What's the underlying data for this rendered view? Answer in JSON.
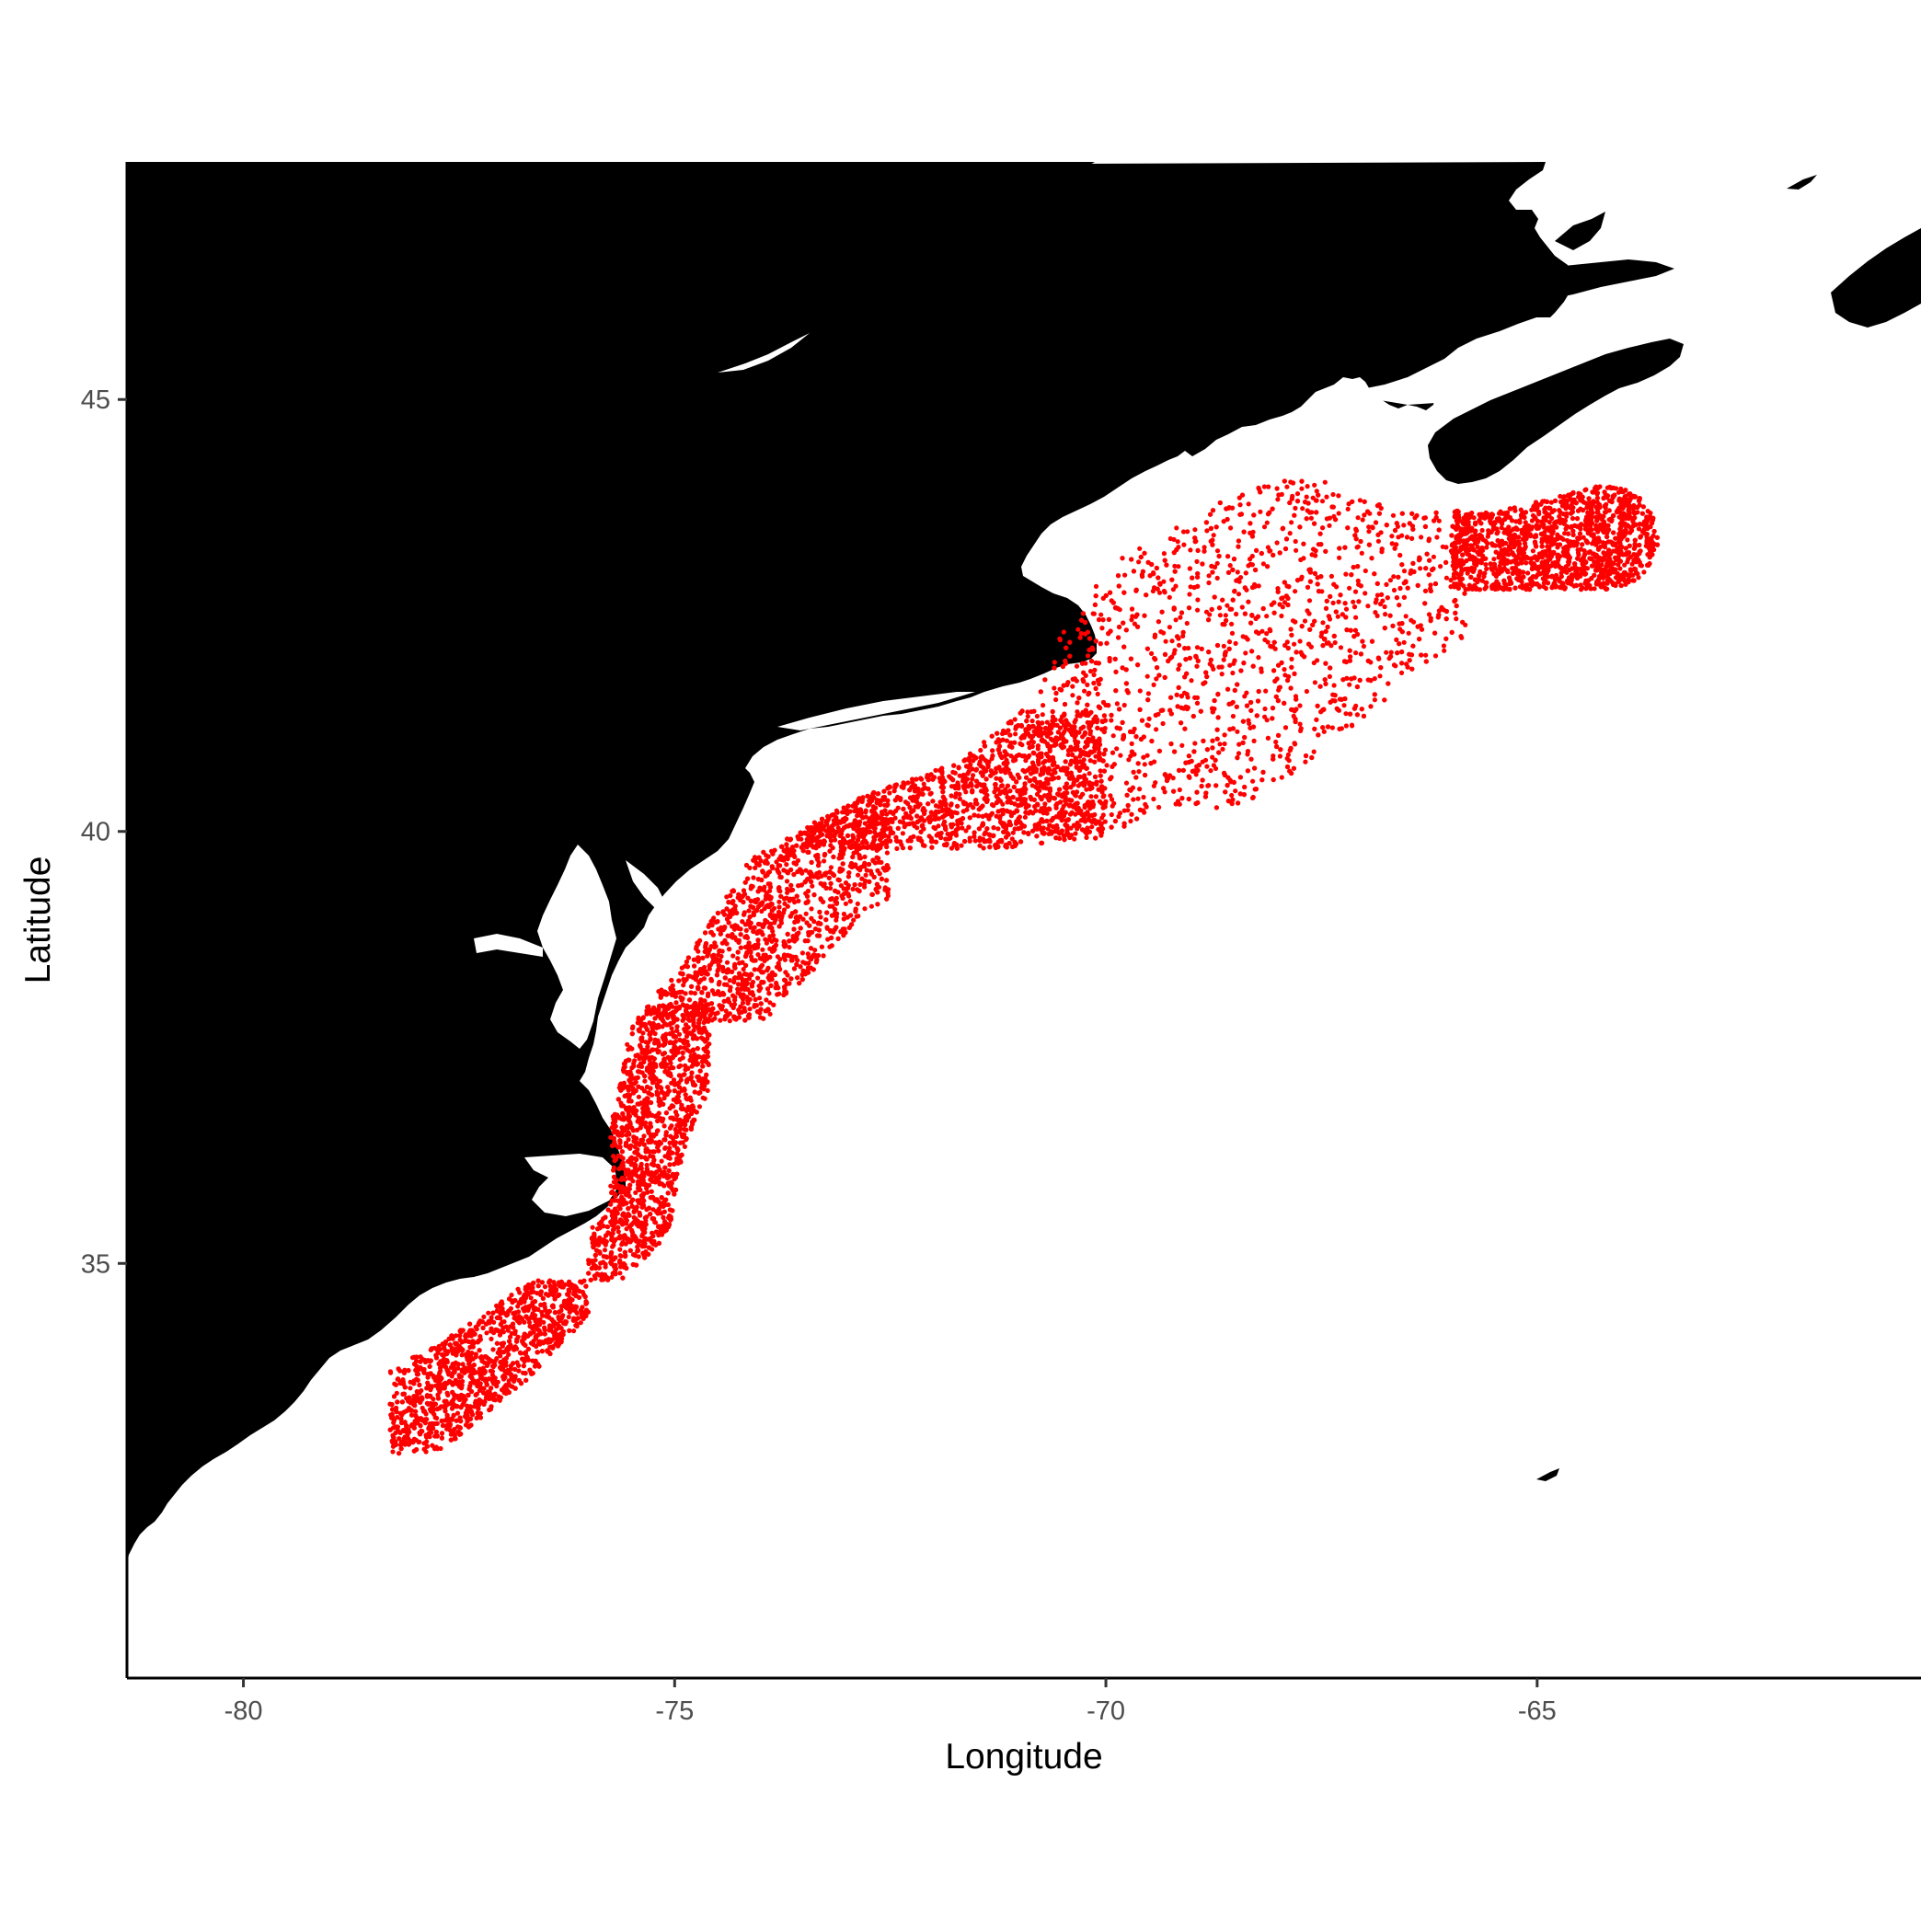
{
  "chart_data": {
    "type": "scatter",
    "title": "",
    "xlabel": "Longitude",
    "ylabel": "Latitude",
    "xlim": [
      -81.35,
      -60.55
    ],
    "ylim": [
      30.2,
      47.75
    ],
    "x_ticks": [
      -80,
      -75,
      -70,
      -65
    ],
    "y_ticks": [
      35,
      40,
      45
    ],
    "x_tick_labels": [
      "-80",
      "-75",
      "-70",
      "-65"
    ],
    "y_tick_labels": [
      "35",
      "40",
      "45"
    ],
    "grid": false,
    "legend": "none",
    "land_color": "#000000",
    "point_color": "#ff0000",
    "basemap": "land polygons (North America east coast)",
    "series": [
      {
        "points_description": "dense scatter of survey locations along the continental shelf from about 32.8N to 44.5N",
        "point_count_approx": 12000
      }
    ],
    "density_regions": [
      {
        "lon_range": [
          -78.3,
          -76.0
        ],
        "lat_range": [
          32.8,
          34.8
        ]
      },
      {
        "lon_range": [
          -76.0,
          -74.6
        ],
        "lat_range": [
          34.8,
          38.0
        ]
      },
      {
        "lon_range": [
          -75.2,
          -72.5
        ],
        "lat_range": [
          37.8,
          40.4
        ]
      },
      {
        "lon_range": [
          -73.5,
          -70.0
        ],
        "lat_range": [
          39.8,
          41.4
        ]
      },
      {
        "lon_range": [
          -70.8,
          -65.8
        ],
        "lat_range": [
          39.9,
          44.5
        ]
      },
      {
        "lon_range": [
          -66.0,
          -63.5
        ],
        "lat_range": [
          42.8,
          44.3
        ]
      }
    ]
  }
}
